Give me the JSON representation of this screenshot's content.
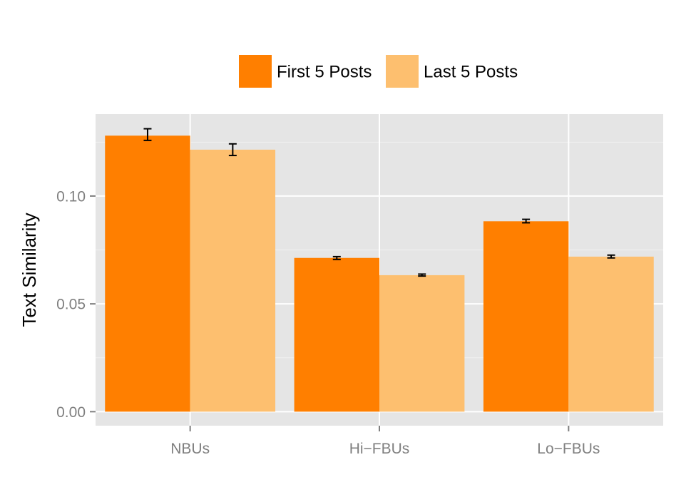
{
  "chart_data": {
    "type": "bar",
    "categories": [
      "NBUs",
      "Hi−FBUs",
      "Lo−FBUs"
    ],
    "series": [
      {
        "name": "First 5 Posts",
        "color": "#FF7F00",
        "values": [
          0.128,
          0.0713,
          0.0883
        ],
        "error_low": [
          0.1258,
          0.0706,
          0.0876
        ],
        "error_high": [
          0.1312,
          0.0719,
          0.0892
        ]
      },
      {
        "name": "Last 5 Posts",
        "color": "#FDBF6F",
        "values": [
          0.1215,
          0.0633,
          0.0719
        ],
        "error_low": [
          0.1188,
          0.0629,
          0.0713
        ],
        "error_high": [
          0.1242,
          0.0638,
          0.0726
        ]
      }
    ],
    "ylabel": "Text Similarity",
    "xlabel": "",
    "yticks": [
      0.0,
      0.05,
      0.1
    ],
    "ytick_labels": [
      "0.00",
      "0.05",
      "0.10"
    ],
    "ylim": [
      -0.0065,
      0.138
    ],
    "grid": true,
    "legend_position": "top"
  }
}
